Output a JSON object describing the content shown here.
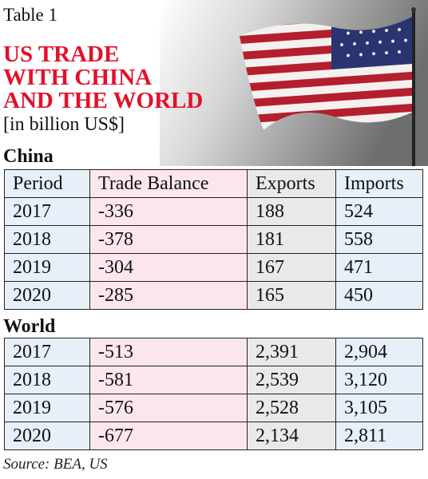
{
  "header": {
    "label": "Table 1",
    "title_lines": [
      "US TRADE",
      "WITH CHINA",
      "AND THE WORLD"
    ],
    "subtitle": "[in billion US$]"
  },
  "sections": [
    {
      "name": "China",
      "columns": [
        "Period",
        "Trade Balance",
        "Exports",
        "Imports"
      ],
      "rows": [
        [
          "2017",
          "-336",
          "188",
          "524"
        ],
        [
          "2018",
          "-378",
          "181",
          "558"
        ],
        [
          "2019",
          "-304",
          "167",
          "471"
        ],
        [
          "2020",
          "-285",
          "165",
          "450"
        ]
      ]
    },
    {
      "name": "World",
      "rows": [
        [
          "2017",
          "-513",
          "2,391",
          "2,904"
        ],
        [
          "2018",
          "-581",
          "2,539",
          "3,120"
        ],
        [
          "2019",
          "-576",
          "2,528",
          "3,105"
        ],
        [
          "2020",
          "-677",
          "2,134",
          "2,811"
        ]
      ]
    }
  ],
  "source": "Source: BEA, US"
}
